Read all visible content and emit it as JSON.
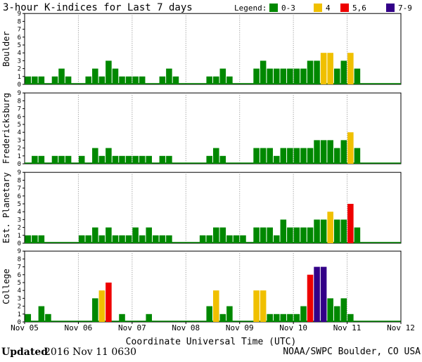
{
  "title": "3-hour K-indices for Last 7 days",
  "legend": {
    "label": "Legend:",
    "items": [
      {
        "text": "0-3",
        "color": "#008800"
      },
      {
        "text": "4",
        "color": "#f0c000"
      },
      {
        "text": "5,6",
        "color": "#ee0000"
      },
      {
        "text": "7-9",
        "color": "#330088"
      }
    ]
  },
  "footer": {
    "updated_label": "Updated",
    "updated_value": "2016 Nov 11 0630",
    "source": "NOAA/SWPC Boulder, CO USA"
  },
  "chart_data": {
    "type": "bar",
    "xlabel": "Coordinate Universal Time (UTC)",
    "x_ticks": [
      "Nov 05",
      "Nov 06",
      "Nov 07",
      "Nov 08",
      "Nov 09",
      "Nov 10",
      "Nov 11",
      "Nov 12"
    ],
    "ylim": [
      0,
      9
    ],
    "y_ticks": [
      "0",
      "1",
      "2",
      "3",
      "4",
      "5",
      "6",
      "7",
      "8",
      "9"
    ],
    "bins_per_day": 8,
    "color_scale": [
      {
        "range": "0-3",
        "color": "#008800"
      },
      {
        "range": "4",
        "color": "#f0c000"
      },
      {
        "range": "5,6",
        "color": "#ee0000"
      },
      {
        "range": "7-9",
        "color": "#330088"
      }
    ],
    "series": [
      {
        "name": "Boulder",
        "values": [
          1,
          1,
          1,
          0,
          1,
          2,
          1,
          0,
          0,
          1,
          2,
          1,
          3,
          2,
          1,
          1,
          1,
          1,
          0,
          0,
          1,
          2,
          1,
          0,
          0,
          0,
          0,
          1,
          1,
          2,
          1,
          0,
          0,
          0,
          2,
          3,
          2,
          2,
          2,
          2,
          2,
          2,
          3,
          3,
          4,
          4,
          2,
          3,
          4,
          2,
          0,
          0,
          0,
          0,
          0,
          0
        ]
      },
      {
        "name": "Fredericksburg",
        "values": [
          0,
          1,
          1,
          0,
          1,
          1,
          1,
          0,
          1,
          0,
          2,
          1,
          2,
          1,
          1,
          1,
          1,
          1,
          1,
          0,
          1,
          1,
          0,
          0,
          0,
          0,
          0,
          1,
          2,
          1,
          0,
          0,
          0,
          0,
          2,
          2,
          2,
          1,
          2,
          2,
          2,
          2,
          2,
          3,
          3,
          3,
          2,
          3,
          4,
          2,
          0,
          0,
          0,
          0,
          0,
          0
        ]
      },
      {
        "name": "Est. Planetary",
        "values": [
          1,
          1,
          1,
          0,
          0,
          0,
          0,
          0,
          1,
          1,
          2,
          1,
          2,
          1,
          1,
          1,
          2,
          1,
          2,
          1,
          1,
          1,
          0,
          0,
          0,
          0,
          1,
          1,
          2,
          2,
          1,
          1,
          1,
          0,
          2,
          2,
          2,
          1,
          3,
          2,
          2,
          2,
          2,
          3,
          3,
          4,
          3,
          3,
          5,
          2,
          0,
          0,
          0,
          0,
          0,
          0
        ]
      },
      {
        "name": "College",
        "values": [
          1,
          0,
          2,
          1,
          0,
          0,
          0,
          0,
          0,
          0,
          3,
          4,
          5,
          0,
          1,
          0,
          0,
          0,
          1,
          0,
          0,
          0,
          0,
          0,
          0,
          0,
          0,
          2,
          4,
          1,
          2,
          0,
          0,
          0,
          4,
          4,
          1,
          1,
          1,
          1,
          1,
          2,
          6,
          7,
          7,
          3,
          2,
          3,
          1,
          0,
          0,
          0,
          0,
          0,
          0,
          0
        ]
      }
    ]
  }
}
